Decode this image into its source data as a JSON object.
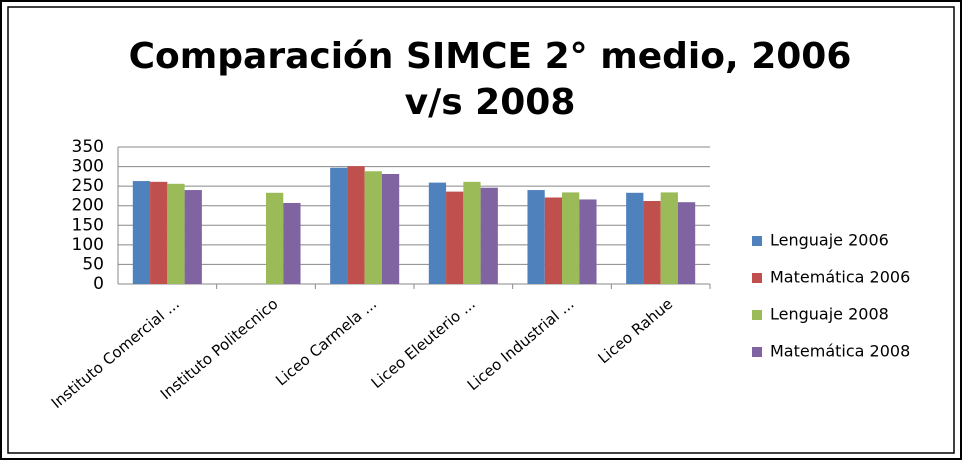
{
  "chart_data": {
    "type": "bar",
    "title": "Comparación SIMCE 2° medio,  2006",
    "subtitle": "v/s 2008",
    "categories": [
      "Instituto Comercial ...",
      "Instituto Politecnico",
      "Liceo Carmela ...",
      "Liceo Eleuterio ...",
      "Liceo Industrial ...",
      "Liceo Rahue"
    ],
    "series": [
      {
        "name": "Lenguaje 2006",
        "color": "#4f81bd",
        "values": [
          263,
          null,
          297,
          259,
          240,
          233
        ]
      },
      {
        "name": "Matemática 2006",
        "color": "#c0504d",
        "values": [
          261,
          null,
          301,
          236,
          221,
          212
        ]
      },
      {
        "name": "Lenguaje 2008",
        "color": "#9bbb59",
        "values": [
          256,
          233,
          288,
          261,
          234,
          234
        ]
      },
      {
        "name": "Matemática 2008",
        "color": "#8064a2",
        "values": [
          240,
          207,
          281,
          246,
          216,
          209
        ]
      }
    ],
    "ylim": [
      0,
      350
    ],
    "yticks": [
      0,
      50,
      100,
      150,
      200,
      250,
      300,
      350
    ],
    "grid": true,
    "legend": "right"
  }
}
